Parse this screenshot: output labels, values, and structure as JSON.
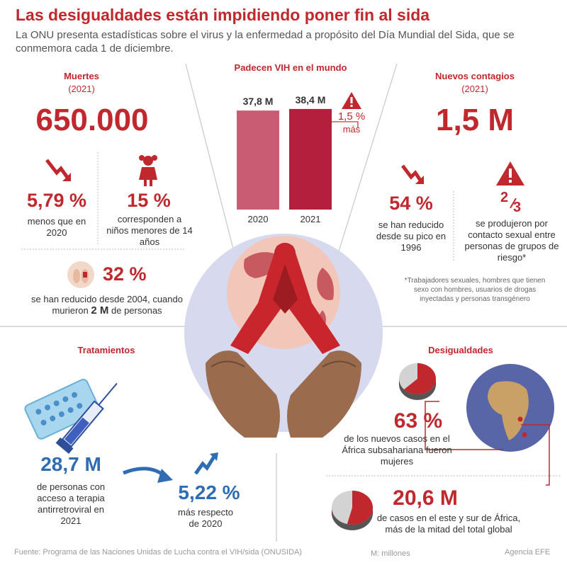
{
  "header": {
    "title": "Las desigualdades están impidiendo poner fin al sida",
    "subtitle": "La ONU presenta estadísticas sobre el virus y la enfermedad a propósito del Día Mundial del Sida, que se conmemora cada 1 de diciembre."
  },
  "deaths": {
    "title": "Muertes",
    "year": "(2021)",
    "total": "650.000",
    "pct_less": "5,79 %",
    "pct_less_desc": "menos que en 2020",
    "pct_children": "15 %",
    "pct_children_desc": "corresponden a niños menores de 14 años",
    "pct_reduced": "32 %",
    "reduced_desc_a": "se han reducido desde 2004, cuando",
    "reduced_desc_b": "murieron",
    "reduced_desc_bold": "2 M",
    "reduced_desc_c": "de personas"
  },
  "hiv": {
    "title": "Padecen VIH en el mundo",
    "warning_pct": "1,5 %",
    "warning_text": "más"
  },
  "chart_data": {
    "type": "bar",
    "categories": [
      "2020",
      "2021"
    ],
    "values": [
      37.8,
      38.4
    ],
    "labels": [
      "37,8 M",
      "38,4 M"
    ],
    "colors": [
      "#c95c73",
      "#b31f3d"
    ],
    "title": "Padecen VIH en el mundo"
  },
  "new_infections": {
    "title": "Nuevos contagios",
    "year": "(2021)",
    "total": "1,5 M",
    "pct_reduced": "54 %",
    "pct_reduced_desc": "se han reducido desde su pico en 1996",
    "fraction_num": "2",
    "fraction_den": "3",
    "fraction_desc": "se produjeron por contacto sexual entre personas de grupos de riesgo*",
    "footnote": "*Trabajadores sexuales, hombres que tienen sexo con hombres, usuarios de drogas inyectadas y personas transgénero"
  },
  "treatments": {
    "title": "Tratamientos",
    "total": "28,7 M",
    "total_desc": "de personas con acceso a terapia antirretroviral en 2021",
    "pct_more": "5,22 %",
    "pct_more_desc": "más respecto de 2020"
  },
  "inequalities": {
    "title": "Desigualdades",
    "pct_women": "63 %",
    "pct_women_value": 63,
    "pct_women_desc": "de los nuevos casos en el África subsahariana fueron mujeres",
    "cases": "20,6 M",
    "cases_share_value": 54,
    "cases_desc": "de casos en el este y sur de África, más de la mitad del total global"
  },
  "footer": {
    "source": "Fuente: Programa de las Naciones Unidas de Lucha contra el VIH/sida (ONUSIDA)",
    "units": "M: millones",
    "agency": "Agencia EFE"
  },
  "colors": {
    "red": "#c0282d",
    "blue": "#2e6db3",
    "bar_2020": "#c95c73",
    "bar_2021": "#b31f3d",
    "globe_bg": "#d7d9ef"
  }
}
